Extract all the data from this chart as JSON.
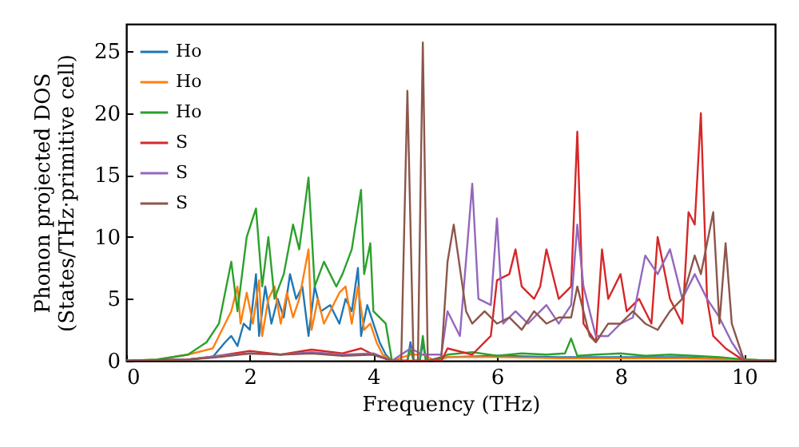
{
  "chart_data": {
    "type": "line",
    "xlabel": "Frequency (THz)",
    "ylabel": "Phonon projected DOS\n(States/THz·primitive cell)",
    "xlim": [
      0,
      10.5
    ],
    "ylim": [
      0,
      27.2
    ],
    "xticks": [
      0,
      2,
      4,
      6,
      8,
      10
    ],
    "yticks": [
      0,
      5,
      10,
      15,
      20,
      25
    ],
    "grid": false,
    "legend": "top left",
    "marker": "none",
    "line_style": "solid",
    "series": [
      {
        "name": "Ho",
        "color": "#1f77b4",
        "x": [
          1.0,
          1.4,
          1.6,
          1.7,
          1.8,
          1.9,
          2.0,
          2.1,
          2.15,
          2.25,
          2.35,
          2.45,
          2.55,
          2.65,
          2.75,
          2.85,
          2.95,
          3.05,
          3.15,
          3.3,
          3.45,
          3.55,
          3.65,
          3.75,
          3.8,
          3.9,
          4.0,
          4.1,
          4.2,
          4.3,
          4.55,
          4.6,
          4.65,
          4.75,
          4.8,
          4.85,
          5.0,
          5.2,
          6,
          7,
          8,
          9,
          10,
          10.5
        ],
        "values": [
          0.1,
          0.3,
          1.5,
          2,
          1.2,
          3,
          2.5,
          7,
          2,
          6,
          3,
          5,
          3.5,
          7,
          5,
          6,
          2,
          6,
          4,
          4.5,
          3,
          5,
          4,
          7.5,
          2,
          4.5,
          3,
          1.5,
          0.5,
          0,
          0,
          1.5,
          0,
          0,
          1.5,
          0,
          0,
          0.3,
          0.4,
          0.3,
          0.3,
          0.3,
          0.1,
          0
        ]
      },
      {
        "name": "Ho",
        "color": "#ff7f0e",
        "x": [
          0,
          0.5,
          1.0,
          1.4,
          1.6,
          1.7,
          1.8,
          1.85,
          1.95,
          2.05,
          2.15,
          2.2,
          2.3,
          2.4,
          2.5,
          2.6,
          2.7,
          2.8,
          2.95,
          3.0,
          3.1,
          3.2,
          3.3,
          3.45,
          3.55,
          3.65,
          3.75,
          3.85,
          3.95,
          4.05,
          4.15,
          4.3,
          4.6,
          4.8,
          5.0,
          5.2,
          6,
          7,
          8,
          9,
          10,
          10.5
        ],
        "values": [
          0,
          0.1,
          0.5,
          1,
          3,
          4,
          6,
          3,
          5.5,
          3,
          6.5,
          2,
          5,
          6,
          3,
          5.5,
          3.5,
          5,
          9,
          2.5,
          5,
          3,
          4,
          5.5,
          6,
          3,
          6,
          2.5,
          3,
          1.5,
          0.5,
          0,
          0.5,
          0.5,
          0,
          0.3,
          0.3,
          0.2,
          0.2,
          0.2,
          0.1,
          0
        ]
      },
      {
        "name": "Ho",
        "color": "#2ca02c",
        "x": [
          0,
          0.5,
          1.0,
          1.3,
          1.5,
          1.7,
          1.8,
          1.95,
          2.1,
          2.2,
          2.3,
          2.4,
          2.55,
          2.7,
          2.8,
          2.95,
          3.05,
          3.2,
          3.4,
          3.5,
          3.65,
          3.8,
          3.85,
          3.95,
          4.0,
          4.2,
          4.3,
          4.55,
          4.6,
          4.65,
          4.75,
          4.8,
          4.85,
          5.0,
          5.2,
          5.6,
          6.0,
          6.4,
          6.8,
          7.1,
          7.2,
          7.3,
          7.6,
          8,
          8.4,
          8.8,
          9.2,
          9.6,
          10,
          10.5
        ],
        "values": [
          0,
          0.1,
          0.5,
          1.5,
          3,
          8,
          4,
          10,
          12.3,
          6,
          10,
          5,
          7,
          11,
          9,
          14.8,
          6,
          8,
          6,
          7,
          9,
          13.8,
          7,
          9.5,
          4,
          3,
          0,
          0,
          1,
          0,
          0,
          2,
          0,
          0,
          0.5,
          0.7,
          0.4,
          0.6,
          0.5,
          0.6,
          1.8,
          0.4,
          0.5,
          0.6,
          0.4,
          0.5,
          0.4,
          0.3,
          0.1,
          0
        ]
      },
      {
        "name": "S",
        "color": "#d62728",
        "x": [
          0,
          1.0,
          1.5,
          2.0,
          2.5,
          3.0,
          3.5,
          3.8,
          4.0,
          4.3,
          5.1,
          5.2,
          5.6,
          5.9,
          6.0,
          6.2,
          6.3,
          6.4,
          6.6,
          6.7,
          6.8,
          7.0,
          7.2,
          7.3,
          7.4,
          7.6,
          7.7,
          7.8,
          8.0,
          8.1,
          8.3,
          8.5,
          8.6,
          8.8,
          9.0,
          9.1,
          9.2,
          9.3,
          9.4,
          9.5,
          9.7,
          10.0,
          10.5
        ],
        "values": [
          0,
          0.1,
          0.4,
          0.8,
          0.5,
          0.9,
          0.6,
          1,
          0.5,
          0,
          0,
          1,
          0.5,
          2,
          6.5,
          7,
          9,
          6,
          5,
          6,
          9,
          5,
          6,
          18.5,
          3,
          1.5,
          9,
          5,
          7,
          4,
          5,
          3,
          10,
          5,
          3,
          12,
          11,
          20,
          5,
          2,
          1,
          0,
          0
        ]
      },
      {
        "name": "S",
        "color": "#9467bd",
        "x": [
          0,
          1.0,
          1.5,
          2.0,
          2.5,
          3.0,
          3.5,
          4.0,
          4.3,
          4.6,
          4.8,
          5.1,
          5.2,
          5.4,
          5.6,
          5.7,
          5.9,
          6.0,
          6.1,
          6.3,
          6.5,
          6.8,
          7.0,
          7.2,
          7.3,
          7.4,
          7.6,
          7.8,
          8.0,
          8.2,
          8.4,
          8.6,
          8.8,
          9.0,
          9.2,
          9.4,
          9.6,
          9.8,
          10.0,
          10.5
        ],
        "values": [
          0,
          0.1,
          0.4,
          0.6,
          0.5,
          0.7,
          0.5,
          0.6,
          0,
          1,
          0.5,
          0.5,
          4,
          2,
          14.3,
          5,
          4.5,
          11.5,
          3,
          4,
          3,
          4.5,
          3,
          4.5,
          11,
          6,
          2,
          2,
          3,
          3.5,
          8.5,
          7,
          9,
          5,
          7,
          5,
          3.5,
          1.5,
          0,
          0
        ]
      },
      {
        "name": "S",
        "color": "#8c564b",
        "x": [
          0,
          1.0,
          1.5,
          2.0,
          2.5,
          3.0,
          3.5,
          4.0,
          4.3,
          4.45,
          4.55,
          4.65,
          4.72,
          4.8,
          4.88,
          5.1,
          5.2,
          5.3,
          5.5,
          5.6,
          5.8,
          6.0,
          6.2,
          6.4,
          6.6,
          6.8,
          7.0,
          7.2,
          7.3,
          7.5,
          7.6,
          7.8,
          8.0,
          8.2,
          8.4,
          8.6,
          8.8,
          9.0,
          9.2,
          9.3,
          9.5,
          9.6,
          9.7,
          9.8,
          10.0,
          10.5
        ],
        "values": [
          0,
          0.1,
          0.3,
          0.6,
          0.5,
          0.6,
          0.4,
          0.5,
          0,
          0,
          21.8,
          0,
          0,
          25.7,
          0,
          0.3,
          8,
          11,
          4,
          3,
          4,
          3,
          3.5,
          2.5,
          4,
          3,
          3.5,
          3.5,
          6,
          2,
          1.5,
          3,
          3,
          4,
          3,
          2.5,
          4,
          5,
          8.5,
          7,
          12,
          3,
          9.5,
          3,
          0,
          0
        ]
      }
    ]
  }
}
